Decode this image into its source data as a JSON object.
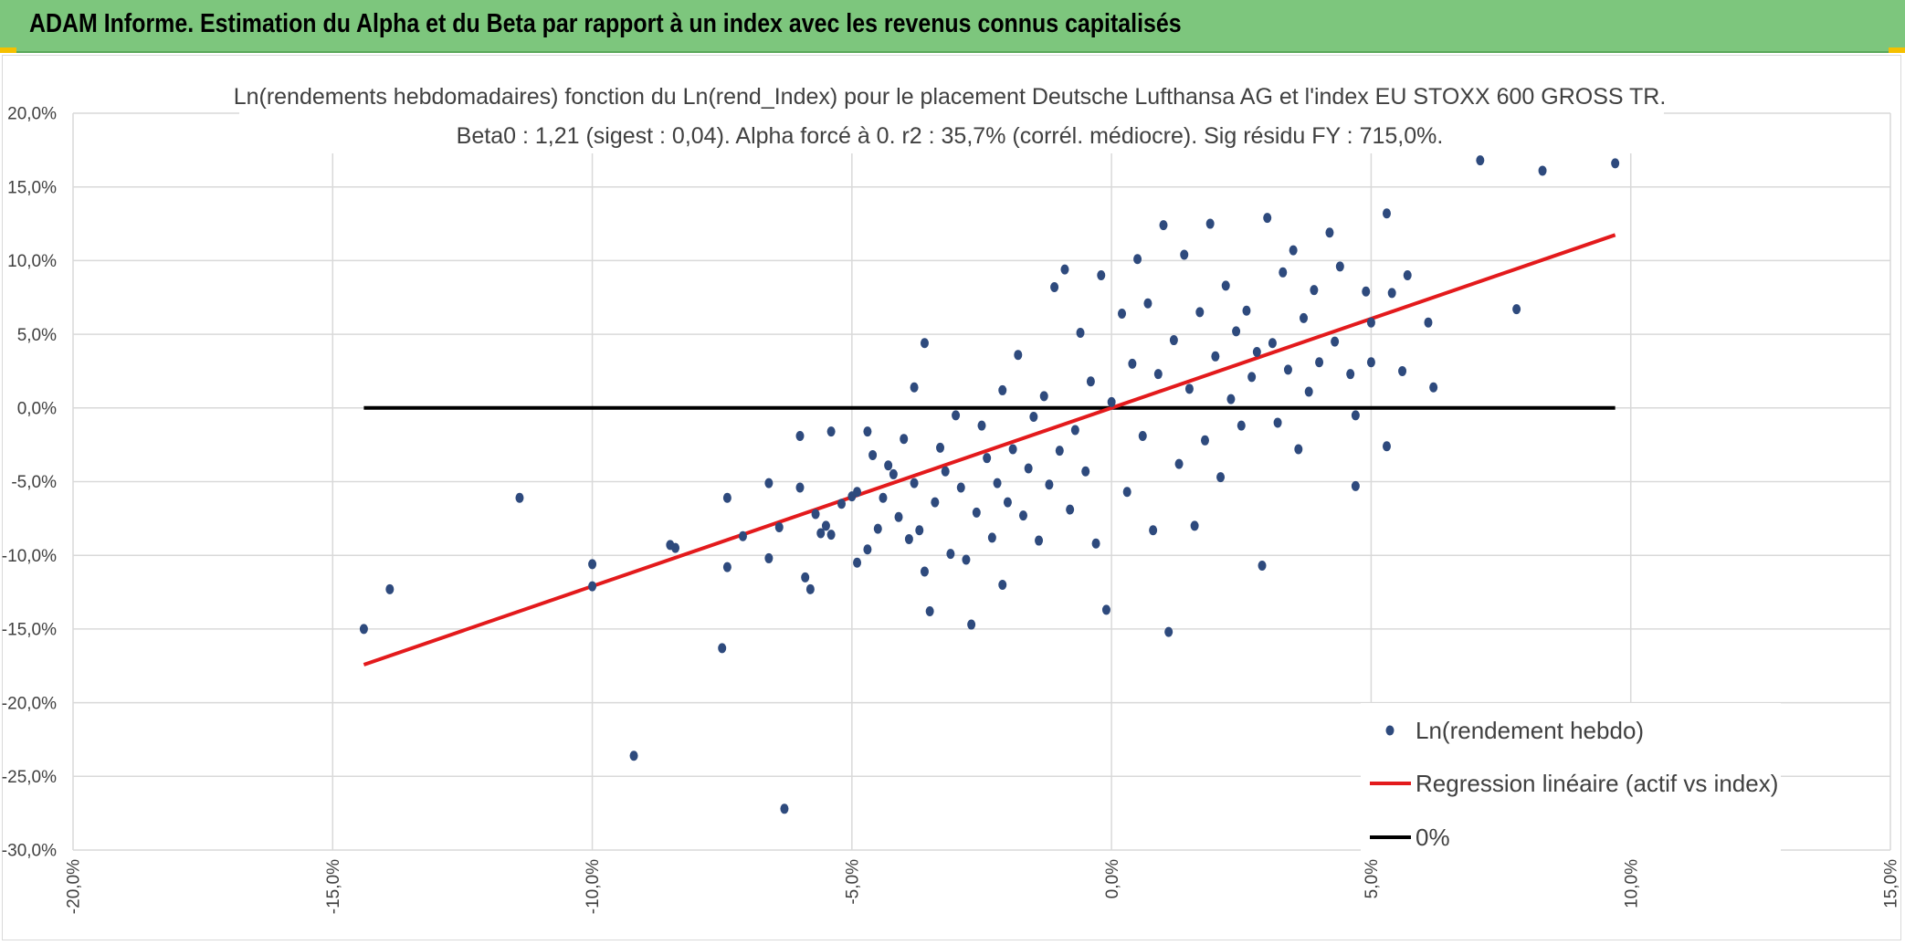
{
  "header": {
    "title": "ADAM Informe. Estimation du Alpha et du Beta par rapport à un index avec les revenus connus capitalisés"
  },
  "colors": {
    "banner": "#7dc67d",
    "points": "#2e4a7d",
    "regression": "#e31a1c",
    "zero_line": "#000000",
    "grid": "#d9d9d9"
  },
  "chart_data": {
    "type": "scatter",
    "title": "Ln(rendements hebdomadaires) fonction du Ln(rend_Index) pour le placement Deutsche Lufthansa AG et l'index EU STOXX 600 GROSS TR.",
    "subtitle": "Beta0 : 1,21 (sigest : 0,04). Alpha forcé à 0. r2 : 35,7% (corrél. médiocre). Sig résidu FY : 715,0%.",
    "xlim": [
      -0.2,
      0.15
    ],
    "ylim": [
      -0.3,
      0.2
    ],
    "x_ticks": [
      "-20,0%",
      "-15,0%",
      "-10,0%",
      "-5,0%",
      "0,0%",
      "5,0%",
      "10,0%",
      "15,0%"
    ],
    "y_ticks": [
      "20,0%",
      "15,0%",
      "10,0%",
      "5,0%",
      "0,0%",
      "-5,0%",
      "-10,0%",
      "-15,0%",
      "-20,0%",
      "-25,0%",
      "-30,0%"
    ],
    "grid": true,
    "legend_position": "bottom-right",
    "series": [
      {
        "name": "Ln(rendement hebdo)",
        "type": "scatter",
        "points": [
          [
            -0.144,
            -0.15
          ],
          [
            -0.139,
            -0.123
          ],
          [
            -0.114,
            -0.061
          ],
          [
            -0.1,
            -0.106
          ],
          [
            -0.1,
            -0.121
          ],
          [
            -0.092,
            -0.236
          ],
          [
            -0.084,
            -0.095
          ],
          [
            -0.085,
            -0.093
          ],
          [
            -0.075,
            -0.163
          ],
          [
            -0.074,
            -0.108
          ],
          [
            -0.074,
            -0.061
          ],
          [
            -0.071,
            -0.087
          ],
          [
            -0.066,
            -0.051
          ],
          [
            -0.066,
            -0.102
          ],
          [
            -0.064,
            -0.081
          ],
          [
            -0.063,
            -0.272
          ],
          [
            -0.06,
            -0.054
          ],
          [
            -0.06,
            -0.019
          ],
          [
            -0.059,
            -0.115
          ],
          [
            -0.058,
            -0.123
          ],
          [
            -0.057,
            -0.072
          ],
          [
            -0.056,
            -0.085
          ],
          [
            -0.055,
            -0.08
          ],
          [
            -0.054,
            -0.016
          ],
          [
            -0.054,
            -0.086
          ],
          [
            -0.052,
            -0.065
          ],
          [
            -0.05,
            -0.06
          ],
          [
            -0.049,
            -0.057
          ],
          [
            -0.049,
            -0.105
          ],
          [
            -0.047,
            -0.016
          ],
          [
            -0.047,
            -0.096
          ],
          [
            -0.046,
            -0.032
          ],
          [
            -0.045,
            -0.082
          ],
          [
            -0.044,
            -0.061
          ],
          [
            -0.043,
            -0.039
          ],
          [
            -0.042,
            -0.045
          ],
          [
            -0.041,
            -0.074
          ],
          [
            -0.04,
            -0.021
          ],
          [
            -0.039,
            -0.089
          ],
          [
            -0.038,
            0.014
          ],
          [
            -0.038,
            -0.051
          ],
          [
            -0.037,
            -0.083
          ],
          [
            -0.036,
            0.044
          ],
          [
            -0.036,
            -0.111
          ],
          [
            -0.035,
            -0.138
          ],
          [
            -0.034,
            -0.064
          ],
          [
            -0.033,
            -0.027
          ],
          [
            -0.032,
            -0.043
          ],
          [
            -0.031,
            -0.099
          ],
          [
            -0.03,
            -0.005
          ],
          [
            -0.029,
            -0.054
          ],
          [
            -0.028,
            -0.103
          ],
          [
            -0.027,
            -0.147
          ],
          [
            -0.026,
            -0.071
          ],
          [
            -0.025,
            -0.012
          ],
          [
            -0.024,
            -0.034
          ],
          [
            -0.023,
            -0.088
          ],
          [
            -0.022,
            -0.051
          ],
          [
            -0.021,
            0.012
          ],
          [
            -0.021,
            -0.12
          ],
          [
            -0.02,
            -0.064
          ],
          [
            -0.019,
            -0.028
          ],
          [
            -0.018,
            0.036
          ],
          [
            -0.017,
            -0.073
          ],
          [
            -0.016,
            -0.041
          ],
          [
            -0.015,
            -0.006
          ],
          [
            -0.014,
            -0.09
          ],
          [
            -0.013,
            0.008
          ],
          [
            -0.012,
            -0.052
          ],
          [
            -0.011,
            0.082
          ],
          [
            -0.01,
            -0.029
          ],
          [
            -0.009,
            0.094
          ],
          [
            -0.008,
            -0.069
          ],
          [
            -0.007,
            -0.015
          ],
          [
            -0.006,
            0.051
          ],
          [
            -0.005,
            -0.043
          ],
          [
            -0.004,
            0.018
          ],
          [
            -0.003,
            -0.092
          ],
          [
            -0.002,
            0.09
          ],
          [
            -0.001,
            -0.137
          ],
          [
            0.0,
            0.004
          ],
          [
            0.002,
            0.064
          ],
          [
            0.003,
            -0.057
          ],
          [
            0.004,
            0.03
          ],
          [
            0.005,
            0.101
          ],
          [
            0.006,
            -0.019
          ],
          [
            0.007,
            0.071
          ],
          [
            0.008,
            -0.083
          ],
          [
            0.009,
            0.023
          ],
          [
            0.01,
            0.124
          ],
          [
            0.011,
            -0.152
          ],
          [
            0.012,
            0.046
          ],
          [
            0.013,
            -0.038
          ],
          [
            0.014,
            0.104
          ],
          [
            0.015,
            0.013
          ],
          [
            0.016,
            -0.08
          ],
          [
            0.017,
            0.065
          ],
          [
            0.018,
            -0.022
          ],
          [
            0.019,
            0.125
          ],
          [
            0.02,
            0.035
          ],
          [
            0.021,
            -0.047
          ],
          [
            0.022,
            0.083
          ],
          [
            0.023,
            0.006
          ],
          [
            0.024,
            0.052
          ],
          [
            0.025,
            -0.012
          ],
          [
            0.026,
            0.066
          ],
          [
            0.027,
            0.021
          ],
          [
            0.028,
            0.038
          ],
          [
            0.029,
            -0.107
          ],
          [
            0.03,
            0.129
          ],
          [
            0.031,
            0.044
          ],
          [
            0.032,
            -0.01
          ],
          [
            0.033,
            0.092
          ],
          [
            0.034,
            0.026
          ],
          [
            0.035,
            0.107
          ],
          [
            0.036,
            -0.028
          ],
          [
            0.037,
            0.061
          ],
          [
            0.038,
            0.011
          ],
          [
            0.039,
            0.08
          ],
          [
            0.04,
            0.031
          ],
          [
            0.042,
            0.119
          ],
          [
            0.043,
            0.045
          ],
          [
            0.044,
            0.096
          ],
          [
            0.046,
            0.023
          ],
          [
            0.047,
            -0.005
          ],
          [
            0.047,
            -0.053
          ],
          [
            0.049,
            0.079
          ],
          [
            0.05,
            0.031
          ],
          [
            0.05,
            0.058
          ],
          [
            0.053,
            -0.026
          ],
          [
            0.053,
            0.132
          ],
          [
            0.054,
            0.078
          ],
          [
            0.056,
            0.025
          ],
          [
            0.057,
            0.09
          ],
          [
            0.061,
            0.058
          ],
          [
            0.062,
            0.014
          ],
          [
            0.071,
            0.168
          ],
          [
            0.078,
            0.067
          ],
          [
            0.083,
            0.161
          ],
          [
            0.097,
            0.166
          ]
        ]
      },
      {
        "name": "Regression linéaire (actif vs index)",
        "type": "line",
        "points": [
          [
            -0.144,
            -0.1742
          ],
          [
            0.097,
            0.1174
          ]
        ]
      },
      {
        "name": "0%",
        "type": "line",
        "points": [
          [
            -0.144,
            0.0
          ],
          [
            0.097,
            0.0
          ]
        ]
      }
    ]
  }
}
